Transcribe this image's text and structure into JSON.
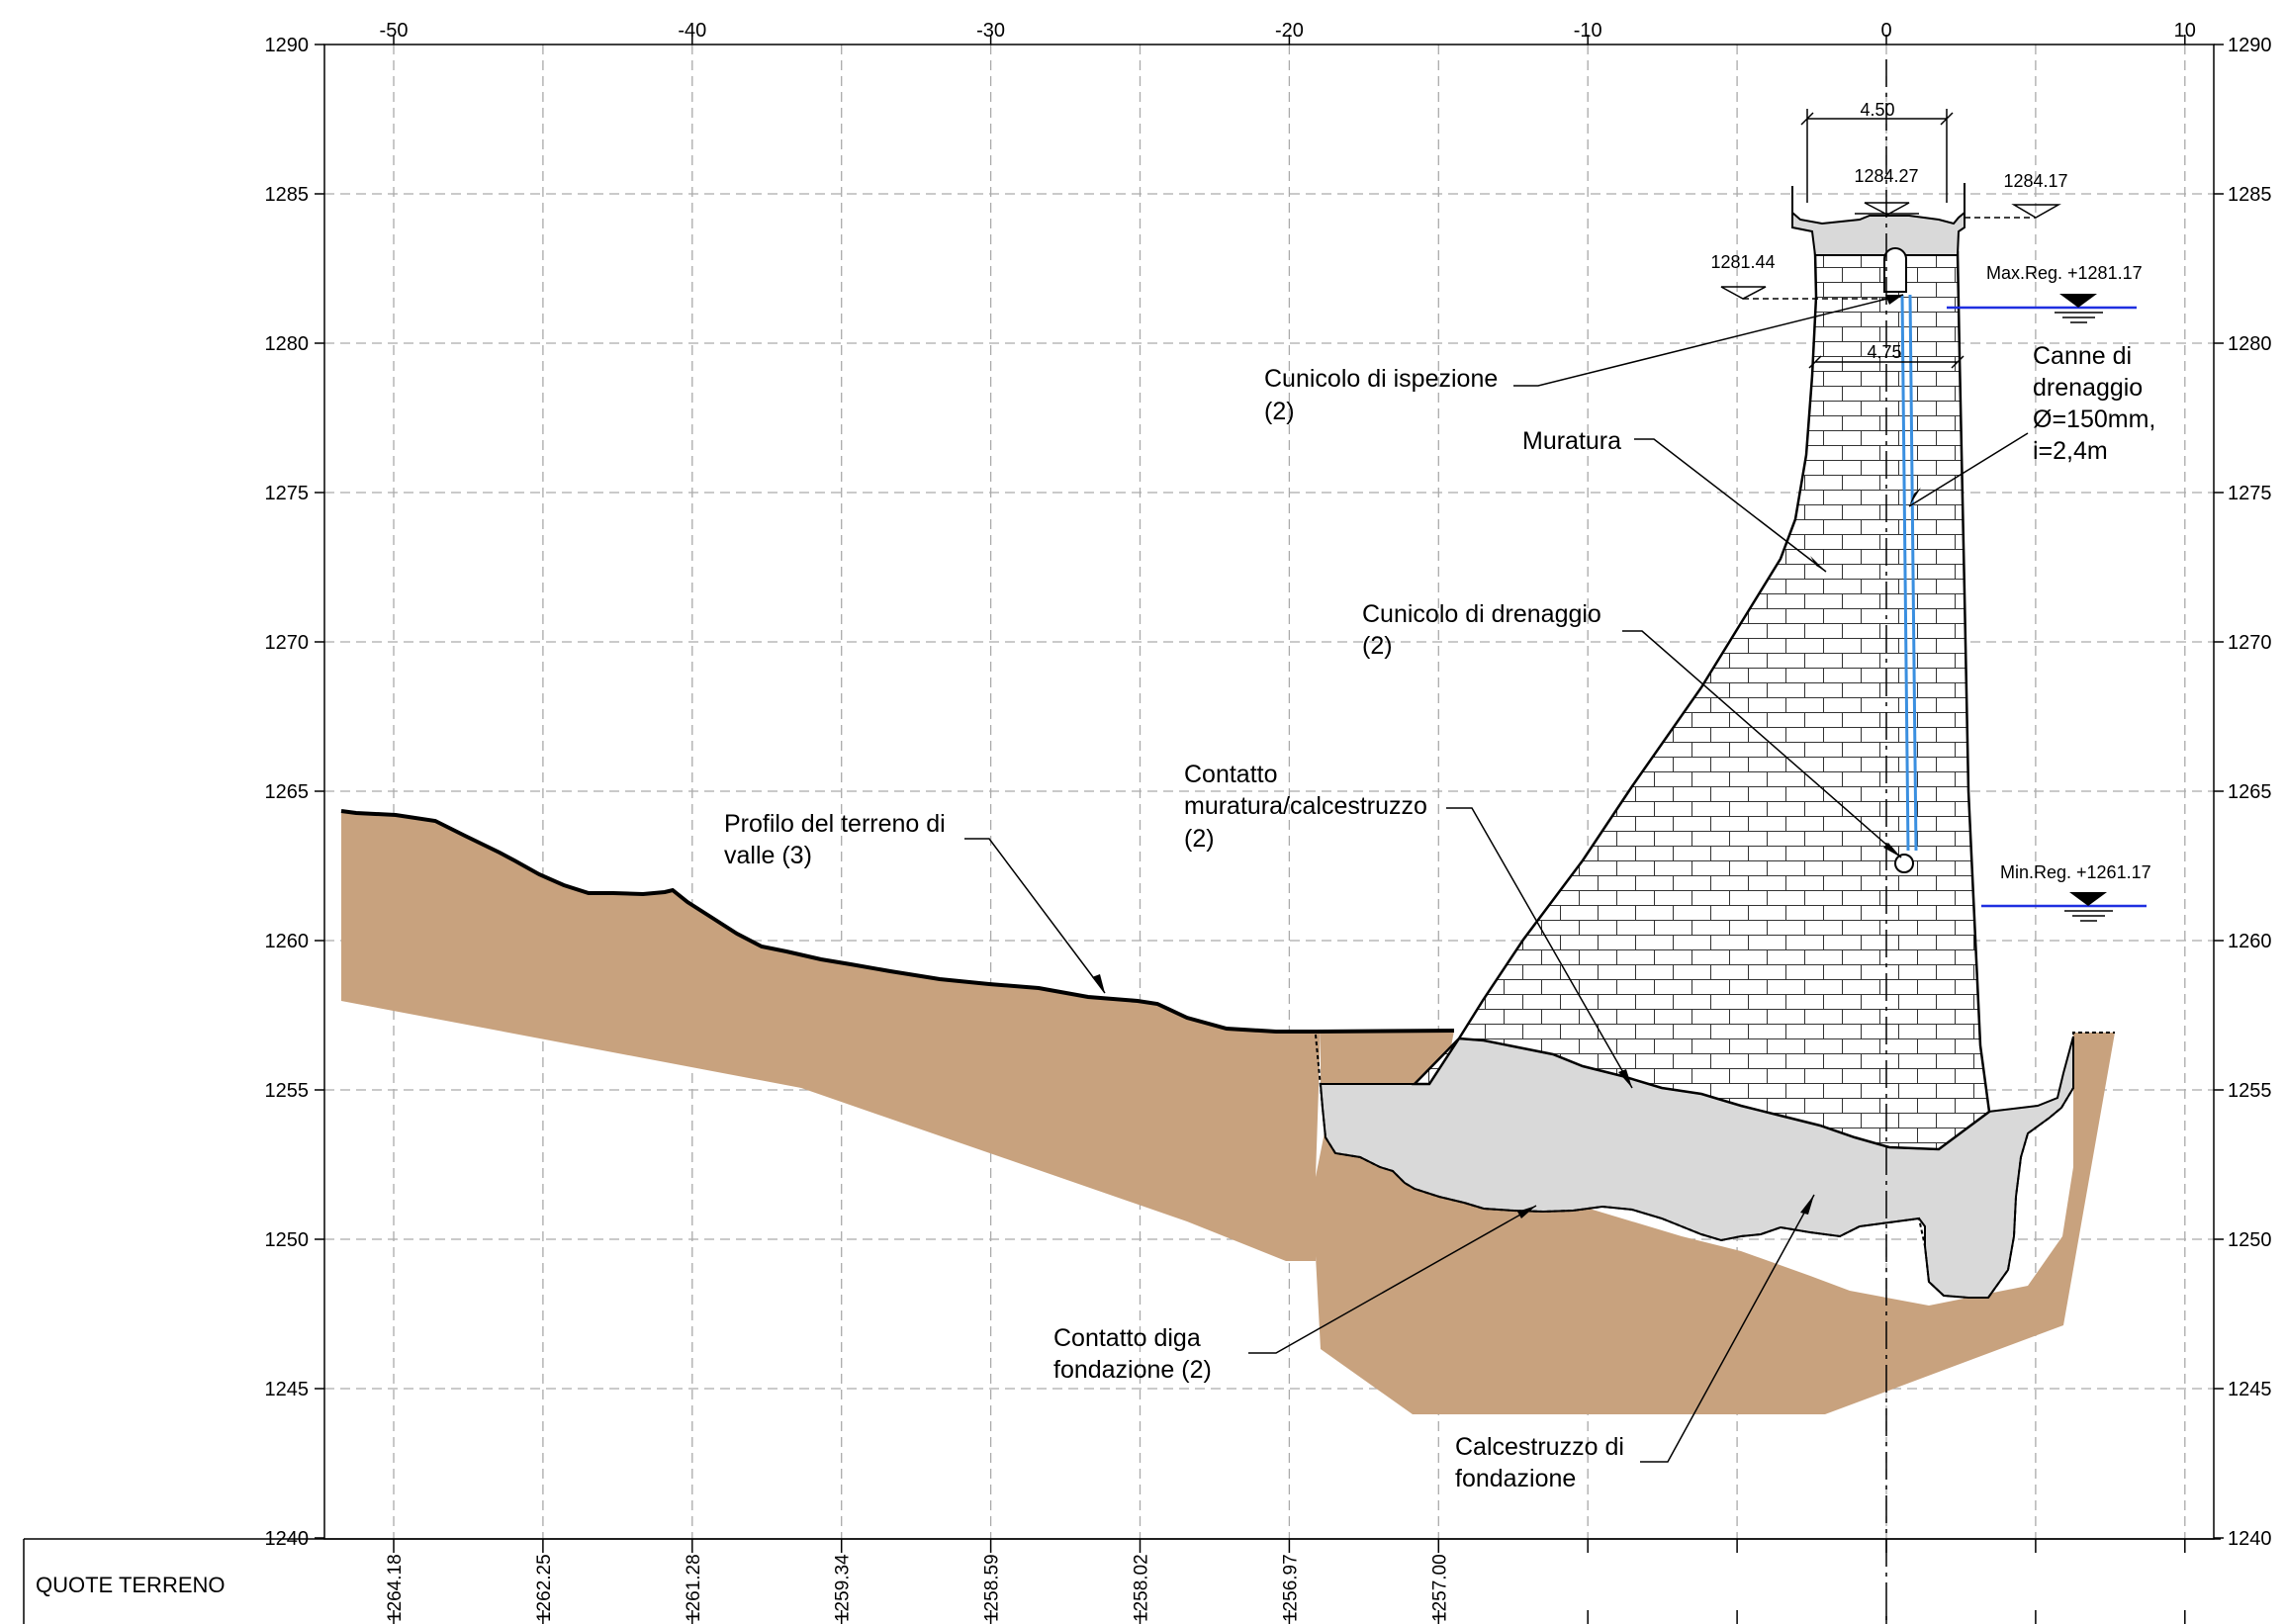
{
  "axes": {
    "x_ticks": [
      "-50",
      "-40",
      "-30",
      "-20",
      "-10",
      "0",
      "10"
    ],
    "y_ticks": [
      "1290",
      "1285",
      "1280",
      "1275",
      "1270",
      "1265",
      "1260",
      "1255",
      "1250",
      "1245",
      "1240"
    ]
  },
  "dimensions": {
    "crest_width": "4.50",
    "inspection_width": "4.75"
  },
  "elevations": {
    "crest": "1284.27",
    "parapet": "1284.17",
    "inspection": "1281.44",
    "max_reg": "Max.Reg. +1281.17",
    "min_reg": "Min.Reg. +1261.17"
  },
  "labels": {
    "cunicolo_ispezione": [
      "Cunicolo di ispezione",
      "(2)"
    ],
    "muratura": "Muratura",
    "canne": [
      "Canne di",
      "drenaggio",
      "Ø=150mm,",
      "i=2,4m"
    ],
    "cunicolo_drenaggio": [
      "Cunicolo di drenaggio",
      "(2)"
    ],
    "contatto_mur": [
      "Contatto",
      "muratura/calcestruzzo",
      "(2)"
    ],
    "profilo": [
      "Profilo del terreno di",
      "valle (3)"
    ],
    "contatto_diga": [
      "Contatto diga",
      "fondazione (2)"
    ],
    "calcestruzzo": [
      "Calcestruzzo di",
      "fondazione"
    ]
  },
  "table": {
    "row_title": "QUOTE TERRENO",
    "values": [
      "1264.18",
      "1262.25",
      "1261.28",
      "1259.34",
      "1258.59",
      "1258.02",
      "1256.97",
      "1257.00"
    ]
  },
  "colors": {
    "soil": "#C8A27E",
    "concrete": "#D9D9D9",
    "masonry": "#FFFFFF",
    "water_line": "#1F2FE0",
    "drain_pipe": "#3A8FE0",
    "grid": "#AAAAAA"
  }
}
